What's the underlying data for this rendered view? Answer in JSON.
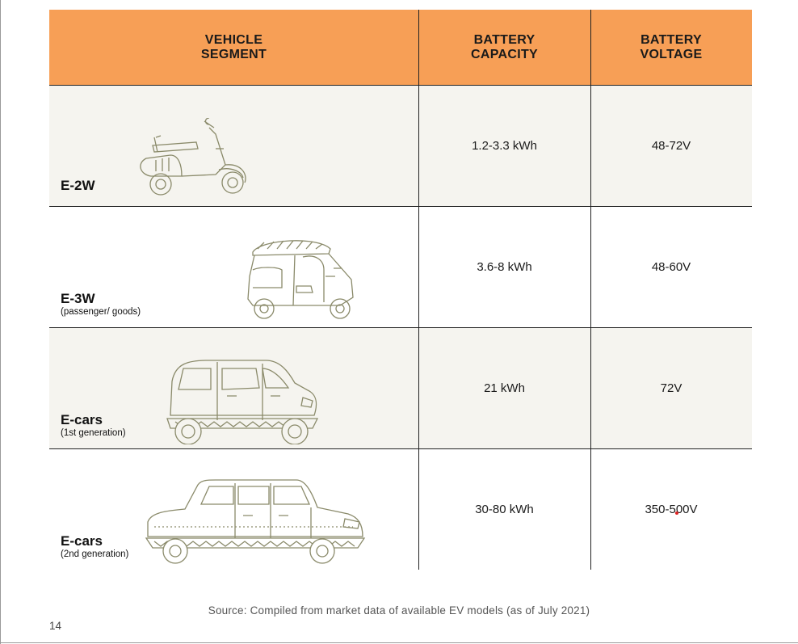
{
  "table": {
    "headers": [
      "VEHICLE\nSEGMENT",
      "BATTERY\nCAPACITY",
      "BATTERY\nVOLTAGE"
    ],
    "rows": [
      {
        "segment": "E-2W",
        "subtitle": "",
        "capacity": "1.2-3.3 kWh",
        "voltage": "48-72V",
        "icon": "scooter-icon"
      },
      {
        "segment": "E-3W",
        "subtitle": "(passenger/ goods)",
        "capacity": "3.6-8 kWh",
        "voltage": "48-60V",
        "icon": "auto-rickshaw-icon"
      },
      {
        "segment": "E-cars",
        "subtitle": "(1st generation)",
        "capacity": "21 kWh",
        "voltage": "72V",
        "icon": "hatchback-car-icon"
      },
      {
        "segment": "E-cars",
        "subtitle": "(2nd generation)",
        "capacity": "30-80 kWh",
        "voltage": "350-500V",
        "icon": "sedan-car-icon"
      }
    ]
  },
  "footer": {
    "source": "Source: Compiled from market data of available EV models (as of July 2021)",
    "page_number": "14"
  },
  "colors": {
    "header_bg": "#f79f56",
    "row_shade": "#f5f4ef",
    "line_art": "#8a8a6a"
  }
}
